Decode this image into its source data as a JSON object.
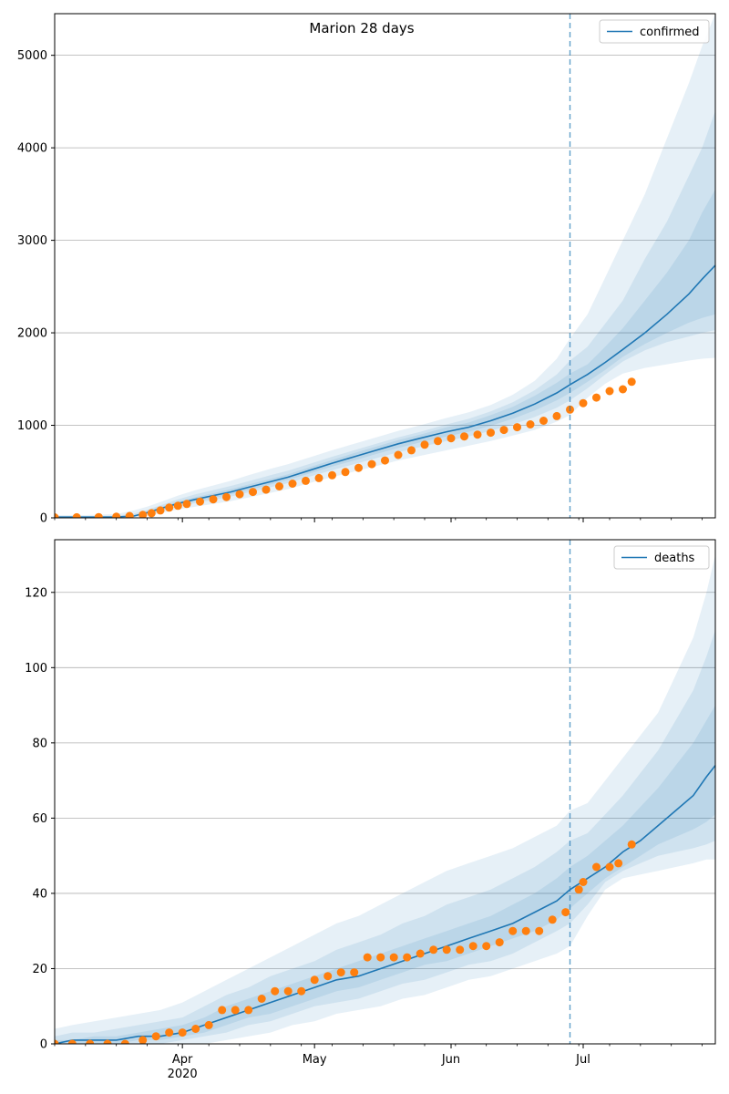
{
  "figure": {
    "title": "Marion 28 days"
  },
  "colors": {
    "line": "#1f77b4",
    "observed": "#ff7f0e",
    "band": "#1f77b4",
    "grid": "#b0b0b0",
    "forecast_start": "#1f77b4"
  },
  "chart_data": [
    {
      "type": "line",
      "title": "Marion 28 days",
      "xlabel": "",
      "ylabel": "",
      "xlim": [
        "2020-03-03",
        "2020-07-31"
      ],
      "ylim": [
        0,
        5450
      ],
      "yticks": [
        0,
        1000,
        2000,
        3000,
        4000,
        5000
      ],
      "xticks": [
        "Apr",
        "May",
        "Jun",
        "Jul"
      ],
      "year_label": "2020",
      "grid": "horizontal",
      "legend": {
        "position": "top-right",
        "label": "confirmed"
      },
      "forecast_start": "2020-06-28",
      "series": [
        {
          "name": "confirmed",
          "kind": "model",
          "x": [
            "2020-03-03",
            "2020-03-10",
            "2020-03-17",
            "2020-03-21",
            "2020-03-24",
            "2020-03-27",
            "2020-03-31",
            "2020-04-04",
            "2020-04-08",
            "2020-04-12",
            "2020-04-16",
            "2020-04-21",
            "2020-04-25",
            "2020-05-01",
            "2020-05-05",
            "2020-05-10",
            "2020-05-15",
            "2020-05-20",
            "2020-05-25",
            "2020-05-31",
            "2020-06-05",
            "2020-06-10",
            "2020-06-15",
            "2020-06-20",
            "2020-06-25",
            "2020-06-28",
            "2020-07-02",
            "2020-07-06",
            "2020-07-10",
            "2020-07-15",
            "2020-07-20",
            "2020-07-25",
            "2020-07-28",
            "2020-07-31"
          ],
          "y": [
            8,
            8,
            10,
            20,
            55,
            100,
            155,
            200,
            240,
            280,
            330,
            390,
            440,
            530,
            590,
            660,
            730,
            800,
            860,
            930,
            980,
            1050,
            1130,
            1230,
            1350,
            1440,
            1550,
            1680,
            1820,
            2000,
            2200,
            2420,
            2580,
            2730
          ],
          "bands": [
            {
              "level": "outer",
              "lower": [
                0,
                0,
                0,
                0,
                20,
                50,
                90,
                120,
                150,
                180,
                220,
                270,
                310,
                390,
                440,
                500,
                560,
                620,
                670,
                730,
                780,
                830,
                890,
                950,
                1040,
                1110,
                1300,
                1450,
                1560,
                1620,
                1660,
                1700,
                1720,
                1730
              ],
              "upper": [
                30,
                30,
                40,
                80,
                120,
                170,
                240,
                300,
                350,
                400,
                460,
                530,
                580,
                670,
                730,
                800,
                870,
                940,
                1000,
                1080,
                1140,
                1220,
                1330,
                1480,
                1720,
                1940,
                2200,
                2600,
                3000,
                3500,
                4100,
                4700,
                5100,
                5450
              ]
            },
            {
              "level": "middle",
              "lower": [
                0,
                0,
                2,
                8,
                35,
                70,
                120,
                160,
                195,
                230,
                275,
                330,
                375,
                460,
                515,
                580,
                645,
                710,
                765,
                830,
                880,
                940,
                1010,
                1090,
                1190,
                1270,
                1400,
                1550,
                1690,
                1810,
                1900,
                1960,
                2000,
                2030
              ],
              "upper": [
                18,
                18,
                25,
                45,
                85,
                135,
                200,
                255,
                300,
                345,
                395,
                460,
                510,
                600,
                660,
                730,
                800,
                870,
                930,
                1010,
                1070,
                1150,
                1250,
                1380,
                1550,
                1700,
                1850,
                2100,
                2350,
                2800,
                3200,
                3700,
                4000,
                4400
              ]
            },
            {
              "level": "inner",
              "lower": [
                4,
                4,
                6,
                14,
                45,
                85,
                135,
                180,
                215,
                255,
                300,
                360,
                410,
                495,
                555,
                620,
                690,
                755,
                815,
                880,
                930,
                995,
                1070,
                1160,
                1270,
                1350,
                1470,
                1600,
                1740,
                1880,
                2000,
                2110,
                2160,
                2200
              ],
              "upper": [
                12,
                12,
                15,
                30,
                70,
                115,
                175,
                225,
                265,
                310,
                360,
                420,
                470,
                565,
                625,
                700,
                770,
                840,
                900,
                980,
                1030,
                1110,
                1200,
                1320,
                1460,
                1560,
                1660,
                1850,
                2050,
                2350,
                2650,
                3000,
                3300,
                3550
              ]
            }
          ]
        },
        {
          "name": "observed",
          "kind": "points",
          "x": [
            "2020-03-03",
            "2020-03-08",
            "2020-03-13",
            "2020-03-17",
            "2020-03-20",
            "2020-03-23",
            "2020-03-25",
            "2020-03-27",
            "2020-03-29",
            "2020-03-31",
            "2020-04-02",
            "2020-04-05",
            "2020-04-08",
            "2020-04-11",
            "2020-04-14",
            "2020-04-17",
            "2020-04-20",
            "2020-04-23",
            "2020-04-26",
            "2020-04-29",
            "2020-05-02",
            "2020-05-05",
            "2020-05-08",
            "2020-05-11",
            "2020-05-14",
            "2020-05-17",
            "2020-05-20",
            "2020-05-23",
            "2020-05-26",
            "2020-05-29",
            "2020-06-01",
            "2020-06-04",
            "2020-06-07",
            "2020-06-10",
            "2020-06-13",
            "2020-06-16",
            "2020-06-19",
            "2020-06-22",
            "2020-06-25",
            "2020-06-28",
            "2020-07-01",
            "2020-07-04",
            "2020-07-07",
            "2020-07-10",
            "2020-07-12"
          ],
          "y": [
            5,
            6,
            8,
            12,
            20,
            32,
            50,
            80,
            110,
            130,
            150,
            175,
            200,
            225,
            255,
            280,
            305,
            340,
            370,
            400,
            430,
            460,
            495,
            540,
            580,
            620,
            680,
            730,
            790,
            830,
            860,
            880,
            900,
            920,
            950,
            980,
            1010,
            1050,
            1100,
            1170,
            1240,
            1300,
            1370,
            1390,
            1470
          ]
        }
      ]
    },
    {
      "type": "line",
      "title": "",
      "xlabel": "",
      "ylabel": "",
      "xlim": [
        "2020-03-03",
        "2020-07-31"
      ],
      "ylim": [
        0,
        134
      ],
      "yticks": [
        0,
        20,
        40,
        60,
        80,
        100,
        120
      ],
      "xticks": [
        "Apr",
        "May",
        "Jun",
        "Jul"
      ],
      "year_label": "2020",
      "grid": "horizontal",
      "legend": {
        "position": "top-right",
        "label": "deaths"
      },
      "forecast_start": "2020-06-28",
      "series": [
        {
          "name": "deaths",
          "kind": "model",
          "x": [
            "2020-03-03",
            "2020-03-07",
            "2020-03-12",
            "2020-03-17",
            "2020-03-22",
            "2020-03-27",
            "2020-04-01",
            "2020-04-06",
            "2020-04-11",
            "2020-04-16",
            "2020-04-21",
            "2020-04-26",
            "2020-05-01",
            "2020-05-06",
            "2020-05-11",
            "2020-05-16",
            "2020-05-21",
            "2020-05-26",
            "2020-05-31",
            "2020-06-05",
            "2020-06-10",
            "2020-06-15",
            "2020-06-20",
            "2020-06-25",
            "2020-06-28",
            "2020-07-02",
            "2020-07-06",
            "2020-07-10",
            "2020-07-14",
            "2020-07-18",
            "2020-07-22",
            "2020-07-26",
            "2020-07-29",
            "2020-07-31"
          ],
          "y": [
            0,
            1,
            1,
            1,
            2,
            2,
            3,
            5,
            7,
            9,
            11,
            13,
            15,
            17,
            18,
            20,
            22,
            24,
            26,
            28,
            30,
            32,
            35,
            38,
            41,
            44,
            47,
            51,
            54,
            58,
            62,
            66,
            71,
            74
          ],
          "bands": [
            {
              "level": "outer",
              "lower": [
                0,
                0,
                0,
                0,
                0,
                0,
                0,
                0,
                1,
                2,
                3,
                5,
                6,
                8,
                9,
                10,
                12,
                13,
                15,
                17,
                18,
                20,
                22,
                24,
                26,
                34,
                41,
                44,
                45,
                46,
                47,
                48,
                49,
                49
              ],
              "upper": [
                4,
                5,
                6,
                7,
                8,
                9,
                11,
                14,
                17,
                20,
                23,
                26,
                29,
                32,
                34,
                37,
                40,
                43,
                46,
                48,
                50,
                52,
                55,
                58,
                62,
                64,
                70,
                76,
                82,
                88,
                98,
                108,
                120,
                130
              ]
            },
            {
              "level": "middle",
              "lower": [
                0,
                0,
                0,
                0,
                0,
                0,
                1,
                2,
                3,
                5,
                6,
                8,
                10,
                11,
                12,
                14,
                16,
                17,
                19,
                21,
                22,
                24,
                27,
                30,
                32,
                37,
                43,
                46,
                48,
                50,
                51,
                52,
                53,
                54
              ],
              "upper": [
                2,
                3,
                3,
                4,
                5,
                6,
                7,
                10,
                13,
                15,
                18,
                20,
                22,
                25,
                27,
                29,
                32,
                34,
                37,
                39,
                41,
                44,
                47,
                51,
                54,
                56,
                61,
                66,
                72,
                78,
                86,
                94,
                103,
                110
              ]
            },
            {
              "level": "inner",
              "lower": [
                0,
                0,
                0,
                0,
                1,
                1,
                2,
                3,
                5,
                7,
                8,
                10,
                12,
                14,
                15,
                17,
                19,
                21,
                22,
                24,
                26,
                28,
                30,
                33,
                36,
                40,
                44,
                47,
                50,
                53,
                55,
                57,
                59,
                61
              ],
              "upper": [
                1,
                1,
                2,
                2,
                3,
                4,
                5,
                7,
                10,
                12,
                14,
                16,
                18,
                20,
                22,
                24,
                26,
                28,
                30,
                32,
                34,
                37,
                40,
                44,
                47,
                50,
                54,
                58,
                63,
                68,
                74,
                80,
                86,
                90
              ]
            }
          ]
        },
        {
          "name": "observed",
          "kind": "points",
          "x": [
            "2020-03-03",
            "2020-03-07",
            "2020-03-11",
            "2020-03-15",
            "2020-03-19",
            "2020-03-23",
            "2020-03-26",
            "2020-03-29",
            "2020-04-01",
            "2020-04-04",
            "2020-04-07",
            "2020-04-10",
            "2020-04-13",
            "2020-04-16",
            "2020-04-19",
            "2020-04-22",
            "2020-04-25",
            "2020-04-28",
            "2020-05-01",
            "2020-05-04",
            "2020-05-07",
            "2020-05-10",
            "2020-05-13",
            "2020-05-16",
            "2020-05-19",
            "2020-05-22",
            "2020-05-25",
            "2020-05-28",
            "2020-05-31",
            "2020-06-03",
            "2020-06-06",
            "2020-06-09",
            "2020-06-12",
            "2020-06-15",
            "2020-06-18",
            "2020-06-21",
            "2020-06-24",
            "2020-06-27",
            "2020-06-30",
            "2020-07-01",
            "2020-07-04",
            "2020-07-07",
            "2020-07-09",
            "2020-07-12"
          ],
          "y": [
            0,
            0,
            0,
            0,
            0,
            1,
            2,
            3,
            3,
            4,
            5,
            9,
            9,
            9,
            12,
            14,
            14,
            14,
            17,
            18,
            19,
            19,
            23,
            23,
            23,
            23,
            24,
            25,
            25,
            25,
            26,
            26,
            27,
            30,
            30,
            30,
            33,
            35,
            41,
            43,
            47,
            47,
            48,
            53
          ]
        }
      ]
    }
  ]
}
